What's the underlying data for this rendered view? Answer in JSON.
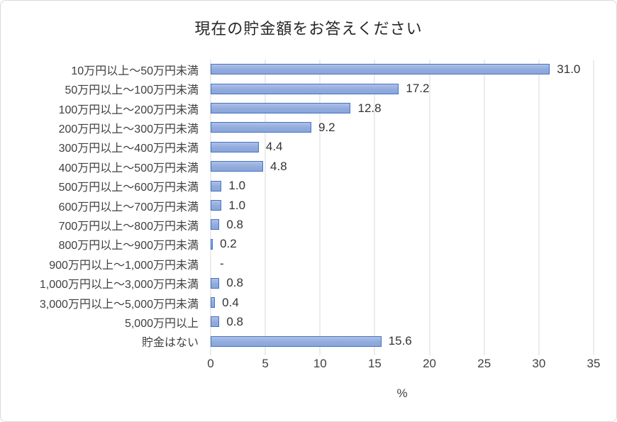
{
  "chart_data": {
    "type": "bar",
    "orientation": "horizontal",
    "title": "現在の貯金額をお答えください",
    "xlabel": "%",
    "categories": [
      "10万円以上～50万円未満",
      "50万円以上～100万円未満",
      "100万円以上～200万円未満",
      "200万円以上～300万円未満",
      "300万円以上～400万円未満",
      "400万円以上～500万円未満",
      "500万円以上～600万円未満",
      "600万円以上～700万円未満",
      "700万円以上～800万円未満",
      "800万円以上～900万円未満",
      "900万円以上～1,000万円未満",
      "1,000万円以上～3,000万円未満",
      "3,000万円以上～5,000万円未満",
      "5,000万円以上",
      "貯金はない"
    ],
    "values": [
      31.0,
      17.2,
      12.8,
      9.2,
      4.4,
      4.8,
      1.0,
      1.0,
      0.8,
      0.2,
      null,
      0.8,
      0.4,
      0.8,
      15.6
    ],
    "value_labels": [
      "31.0",
      "17.2",
      "12.8",
      "9.2",
      "4.4",
      "4.8",
      "1.0",
      "1.0",
      "0.8",
      "0.2",
      "-",
      "0.8",
      "0.4",
      "0.8",
      "15.6"
    ],
    "xlim": [
      0,
      35
    ],
    "xticks": [
      0,
      5,
      10,
      15,
      20,
      25,
      30,
      35
    ],
    "grid": true,
    "legend": "none",
    "colors": {
      "bar_fill": "#8FAADC",
      "bar_border": "#4472C4",
      "gridline": "#D9D9D9",
      "text": "#404040",
      "title": "#262626",
      "frame_border": "#D9D9D9",
      "background": "#FFFFFF"
    }
  }
}
